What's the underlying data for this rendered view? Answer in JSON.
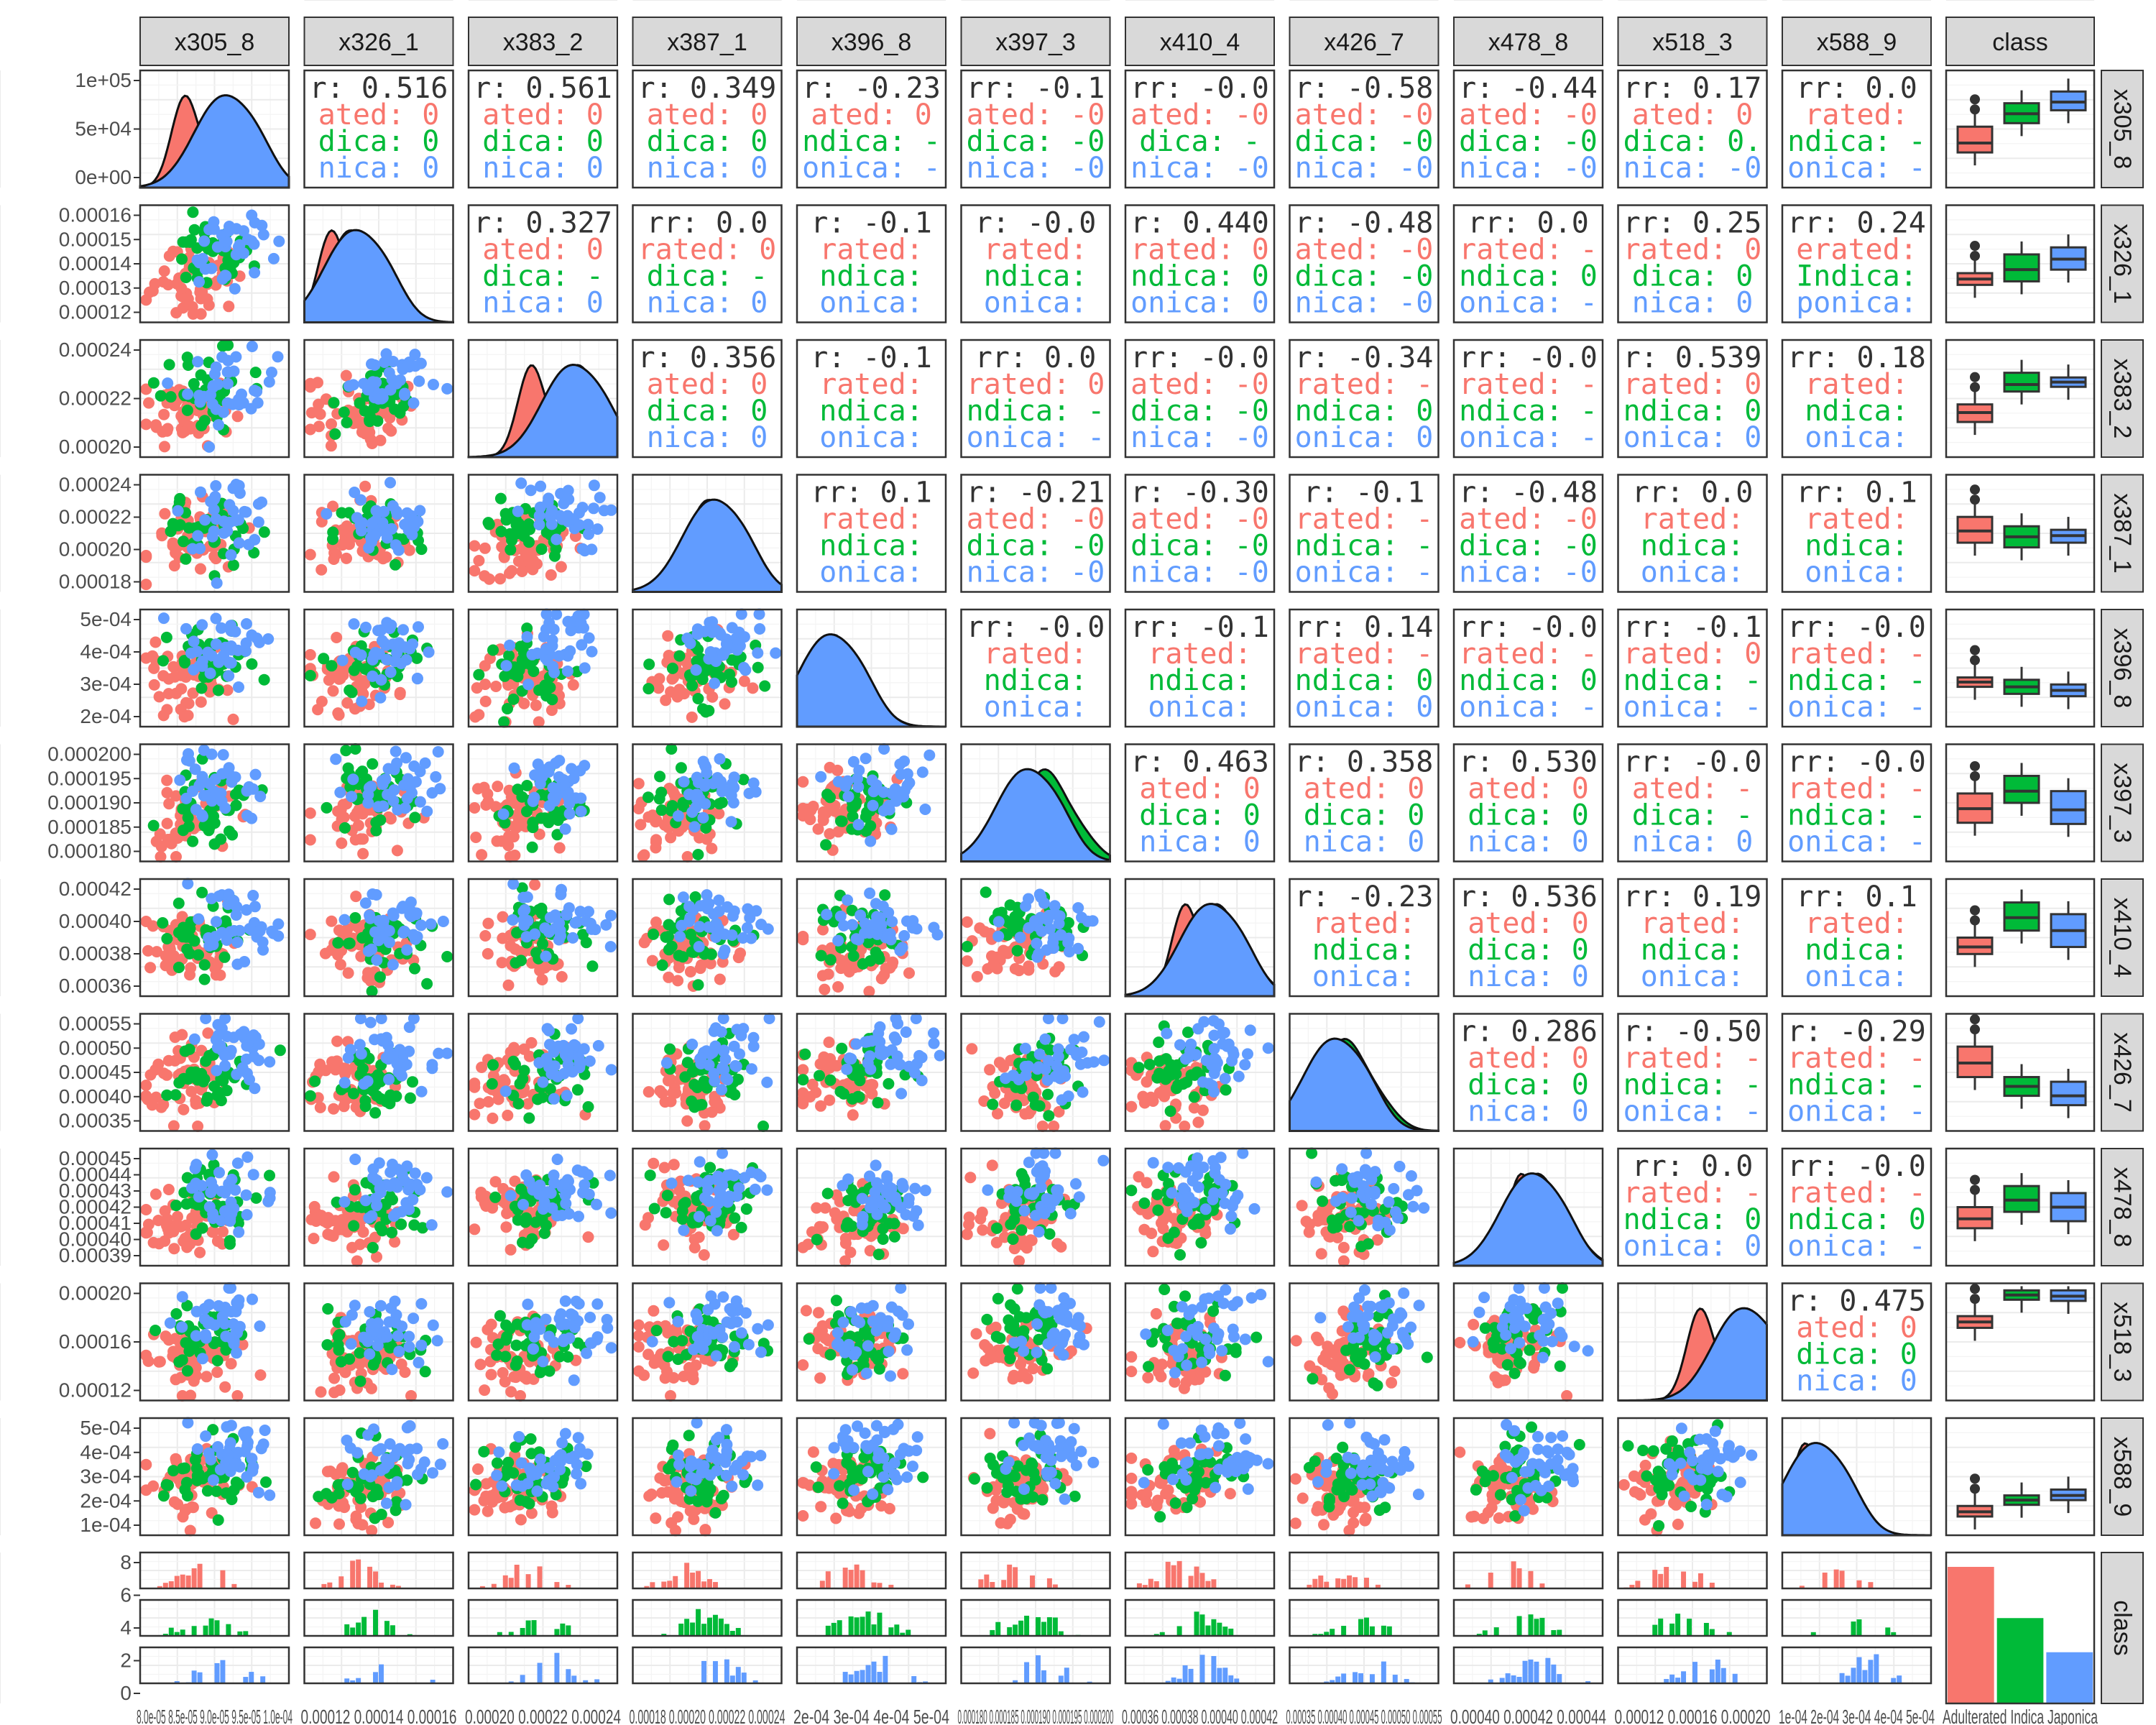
{
  "chart_data": {
    "type": "pairs",
    "variables": [
      "x305_8",
      "x326_1",
      "x383_2",
      "x387_1",
      "x396_8",
      "x397_3",
      "x410_4",
      "x426_7",
      "x478_8",
      "x518_3",
      "x588_9",
      "class"
    ],
    "class_levels": [
      "Adulterated",
      "Indica",
      "Japonica"
    ],
    "class_colors": {
      "Adulterated": "#F8766D",
      "Indica": "#00BA38",
      "Japonica": "#619CFF"
    },
    "y_axis_ticks": {
      "x305_8": [
        "1e+05",
        "5e+04",
        "0e+00"
      ],
      "x326_1": [
        "0.00016",
        "0.00015",
        "0.00014",
        "0.00013",
        "0.00012"
      ],
      "x383_2": [
        "0.00024",
        "0.00022",
        "0.00020"
      ],
      "x387_1": [
        "0.00024",
        "0.00022",
        "0.00020",
        "0.00018"
      ],
      "x396_8": [
        "5e-04",
        "4e-04",
        "3e-04",
        "2e-04"
      ],
      "x397_3": [
        "0.000200",
        "0.000195",
        "0.000190",
        "0.000185",
        "0.000180"
      ],
      "x410_4": [
        "0.00042",
        "0.00040",
        "0.00038",
        "0.00036"
      ],
      "x426_7": [
        "0.00055",
        "0.00050",
        "0.00045",
        "0.00040",
        "0.00035"
      ],
      "x478_8": [
        "0.00045",
        "0.00044",
        "0.00043",
        "0.00042",
        "0.00041",
        "0.00040",
        "0.00039"
      ],
      "x518_3": [
        "0.00020",
        "0.00016",
        "0.00012"
      ],
      "x588_9": [
        "5e-04",
        "4e-04",
        "3e-04",
        "2e-04",
        "1e-04"
      ],
      "class": [
        "8",
        "6",
        "4",
        "2",
        "0"
      ]
    },
    "x_axis_ticks": {
      "x305_8": "8.0e-05 8.5e-05 9.0e-05 9.5e-05 1.0e-04",
      "x326_1": "0.00012 0.00014 0.00016",
      "x383_2": "0.00020 0.00022 0.00024",
      "x387_1": "0.00018 0.00020 0.00022 0.00024",
      "x396_8": "2e-04 3e-04 4e-04 5e-04",
      "x397_3": "0.000180 0.000185 0.000190 0.000195 0.000200",
      "x410_4": "0.00036 0.00038 0.00040 0.00042",
      "x426_7": "0.00035 0.00040 0.00045 0.00050 0.00055",
      "x478_8": "0.00040 0.00042 0.00044",
      "x518_3": "0.00012 0.00016 0.00020",
      "x588_9": "1e-04 2e-04 3e-04 4e-04 5e-04",
      "class": "Adulterated Indica Japonica"
    },
    "correlation_texts": [
      {
        "row": 0,
        "col": 1,
        "lines": [
          "r: 0.516",
          "ated: 0",
          "dica: 0",
          "nica: 0"
        ]
      },
      {
        "row": 0,
        "col": 2,
        "lines": [
          "r: 0.561",
          "ated: 0",
          "dica: 0",
          "nica: 0"
        ]
      },
      {
        "row": 0,
        "col": 3,
        "lines": [
          "r: 0.349",
          "ated: 0",
          "dica: 0",
          "nica: 0"
        ]
      },
      {
        "row": 0,
        "col": 4,
        "lines": [
          "r: -0.23",
          "ated: 0",
          "ndica: -",
          "onica: -"
        ]
      },
      {
        "row": 0,
        "col": 5,
        "lines": [
          "rr: -0.1",
          "ated: -0",
          "dica: -0",
          "nica: -0"
        ]
      },
      {
        "row": 0,
        "col": 6,
        "lines": [
          "rr: -0.0",
          "ated: -0",
          "dica: -",
          "nica: -0"
        ]
      },
      {
        "row": 0,
        "col": 7,
        "lines": [
          "r: -0.58",
          "ated: -0",
          "dica: -0",
          "nica: -0"
        ]
      },
      {
        "row": 0,
        "col": 8,
        "lines": [
          "r: -0.44",
          "ated: -0",
          "dica: -0",
          "nica: -0"
        ]
      },
      {
        "row": 0,
        "col": 9,
        "lines": [
          "rr: 0.17",
          "ated: 0",
          "dica: 0.",
          "nica: -0"
        ]
      },
      {
        "row": 0,
        "col": 10,
        "lines": [
          "rr: 0.0",
          "rated:",
          "ndica: -",
          "onica: -"
        ]
      },
      {
        "row": 1,
        "col": 2,
        "lines": [
          "r: 0.327",
          "ated: 0",
          "dica: -",
          "nica: 0"
        ]
      },
      {
        "row": 1,
        "col": 3,
        "lines": [
          "rr: 0.0",
          "rated: 0",
          "dica: -",
          "nica: 0"
        ]
      },
      {
        "row": 1,
        "col": 4,
        "lines": [
          "r: -0.1",
          "rated:",
          "ndica:",
          "onica:"
        ]
      },
      {
        "row": 1,
        "col": 5,
        "lines": [
          "r: -0.0",
          "rated:",
          "ndica:",
          "onica:"
        ]
      },
      {
        "row": 1,
        "col": 6,
        "lines": [
          "r: 0.440",
          "rated: 0",
          "ndica: 0",
          "onica: 0"
        ]
      },
      {
        "row": 1,
        "col": 7,
        "lines": [
          "r: -0.48",
          "ated: -0",
          "dica: -0",
          "nica: -0"
        ]
      },
      {
        "row": 1,
        "col": 8,
        "lines": [
          "rr: 0.0",
          "rated: -",
          "ndica: 0",
          "onica: -"
        ]
      },
      {
        "row": 1,
        "col": 9,
        "lines": [
          "rr: 0.25",
          "rated: 0",
          "dica: 0",
          "nica: 0"
        ]
      },
      {
        "row": 1,
        "col": 10,
        "lines": [
          "rr: 0.24",
          "erated:",
          "Indica:",
          "ponica:"
        ]
      },
      {
        "row": 2,
        "col": 3,
        "lines": [
          "r: 0.356",
          "ated: 0",
          "dica: 0",
          "nica: 0"
        ]
      },
      {
        "row": 2,
        "col": 4,
        "lines": [
          "r: -0.1",
          "rated:",
          "ndica:",
          "onica:"
        ]
      },
      {
        "row": 2,
        "col": 5,
        "lines": [
          "rr: 0.0",
          "rated: 0",
          "ndica: -",
          "onica: -"
        ]
      },
      {
        "row": 2,
        "col": 6,
        "lines": [
          "rr: -0.0",
          "ated: -0",
          "dica: -0",
          "nica: -0"
        ]
      },
      {
        "row": 2,
        "col": 7,
        "lines": [
          "r: -0.34",
          "rated: -",
          "ndica: 0",
          "onica: 0"
        ]
      },
      {
        "row": 2,
        "col": 8,
        "lines": [
          "rr: -0.0",
          "rated: -",
          "ndica: -",
          "onica: -"
        ]
      },
      {
        "row": 2,
        "col": 9,
        "lines": [
          "r: 0.539",
          "rated: 0",
          "ndica: 0",
          "onica: 0"
        ]
      },
      {
        "row": 2,
        "col": 10,
        "lines": [
          "rr: 0.18",
          "rated:",
          "ndica:",
          "onica:"
        ]
      },
      {
        "row": 3,
        "col": 4,
        "lines": [
          "rr: 0.1",
          "rated:",
          "ndica:",
          "onica:"
        ]
      },
      {
        "row": 3,
        "col": 5,
        "lines": [
          "r: -0.21",
          "ated: -0",
          "dica: -0",
          "nica: -0"
        ]
      },
      {
        "row": 3,
        "col": 6,
        "lines": [
          "r: -0.30",
          "ated: -0",
          "dica: -0",
          "nica: -0"
        ]
      },
      {
        "row": 3,
        "col": 7,
        "lines": [
          "r: -0.1",
          "rated: -",
          "ndica: -",
          "onica: -"
        ]
      },
      {
        "row": 3,
        "col": 8,
        "lines": [
          "r: -0.48",
          "ated: -0",
          "dica: -0",
          "nica: -0"
        ]
      },
      {
        "row": 3,
        "col": 9,
        "lines": [
          "rr: 0.0",
          "rated:",
          "ndica:",
          "onica:"
        ]
      },
      {
        "row": 3,
        "col": 10,
        "lines": [
          "rr: 0.1",
          "rated:",
          "ndica:",
          "onica:"
        ]
      },
      {
        "row": 4,
        "col": 5,
        "lines": [
          "rr: -0.0",
          "rated:",
          "ndica:",
          "onica:"
        ]
      },
      {
        "row": 4,
        "col": 6,
        "lines": [
          "rr: -0.1",
          "rated:",
          "ndica:",
          "onica:"
        ]
      },
      {
        "row": 4,
        "col": 7,
        "lines": [
          "rr: 0.14",
          "rated: -",
          "ndica: 0",
          "onica: 0"
        ]
      },
      {
        "row": 4,
        "col": 8,
        "lines": [
          "rr: -0.0",
          "rated: -",
          "ndica: 0",
          "onica: -"
        ]
      },
      {
        "row": 4,
        "col": 9,
        "lines": [
          "rr: -0.1",
          "rated: 0",
          "ndica: -",
          "onica: -"
        ]
      },
      {
        "row": 4,
        "col": 10,
        "lines": [
          "rr: -0.0",
          "rated: -",
          "ndica: -",
          "onica: -"
        ]
      },
      {
        "row": 5,
        "col": 6,
        "lines": [
          "r: 0.463",
          "ated: 0",
          "dica: 0",
          "nica: 0"
        ]
      },
      {
        "row": 5,
        "col": 7,
        "lines": [
          "r: 0.358",
          "ated: 0",
          "dica: 0",
          "nica: 0"
        ]
      },
      {
        "row": 5,
        "col": 8,
        "lines": [
          "r: 0.530",
          "ated: 0",
          "dica: 0",
          "nica: 0"
        ]
      },
      {
        "row": 5,
        "col": 9,
        "lines": [
          "rr: -0.0",
          "ated: -",
          "dica: -",
          "nica: 0"
        ]
      },
      {
        "row": 5,
        "col": 10,
        "lines": [
          "rr: -0.0",
          "rated: -",
          "ndica: -",
          "onica: -"
        ]
      },
      {
        "row": 6,
        "col": 7,
        "lines": [
          "r: -0.23",
          "rated:",
          "ndica:",
          "onica:"
        ]
      },
      {
        "row": 6,
        "col": 8,
        "lines": [
          "r: 0.536",
          "ated: 0",
          "dica: 0",
          "nica: 0"
        ]
      },
      {
        "row": 6,
        "col": 9,
        "lines": [
          "rr: 0.19",
          "rated:",
          "ndica:",
          "onica:"
        ]
      },
      {
        "row": 6,
        "col": 10,
        "lines": [
          "rr: 0.1",
          "rated:",
          "ndica:",
          "onica:"
        ]
      },
      {
        "row": 7,
        "col": 8,
        "lines": [
          "r: 0.286",
          "ated: 0",
          "dica: 0",
          "nica: 0"
        ]
      },
      {
        "row": 7,
        "col": 9,
        "lines": [
          "r: -0.50",
          "rated: -",
          "ndica: -",
          "onica: -"
        ]
      },
      {
        "row": 7,
        "col": 10,
        "lines": [
          "r: -0.29",
          "rated: -",
          "ndica: -",
          "onica: -"
        ]
      },
      {
        "row": 8,
        "col": 9,
        "lines": [
          "rr: 0.0",
          "rated: -",
          "ndica: 0",
          "onica: 0"
        ]
      },
      {
        "row": 8,
        "col": 10,
        "lines": [
          "rr: -0.0",
          "rated: -",
          "ndica: 0",
          "onica: -"
        ]
      },
      {
        "row": 9,
        "col": 10,
        "lines": [
          "r: 0.475",
          "ated: 0",
          "dica: 0",
          "nica: 0"
        ]
      }
    ],
    "class_counts": {
      "Adulterated": 8,
      "Indica": 5,
      "Japonica": 3
    },
    "box_summary_relative": {
      "x305_8": [
        [
          0.3,
          0.52,
          0.38
        ],
        [
          0.55,
          0.72,
          0.63
        ],
        [
          0.66,
          0.82,
          0.73
        ]
      ],
      "x326_1": [
        [
          0.32,
          0.42,
          0.37
        ],
        [
          0.35,
          0.58,
          0.45
        ],
        [
          0.45,
          0.64,
          0.54
        ]
      ],
      "x383_2": [
        [
          0.3,
          0.45,
          0.38
        ],
        [
          0.56,
          0.72,
          0.62
        ],
        [
          0.6,
          0.68,
          0.64
        ]
      ],
      "x387_1": [
        [
          0.42,
          0.64,
          0.52
        ],
        [
          0.38,
          0.56,
          0.47
        ],
        [
          0.42,
          0.53,
          0.48
        ]
      ],
      "x396_8": [
        [
          0.34,
          0.42,
          0.38
        ],
        [
          0.28,
          0.4,
          0.34
        ],
        [
          0.26,
          0.36,
          0.31
        ]
      ],
      "x397_3": [
        [
          0.33,
          0.58,
          0.45
        ],
        [
          0.5,
          0.73,
          0.6
        ],
        [
          0.32,
          0.6,
          0.44
        ]
      ],
      "x410_4": [
        [
          0.36,
          0.5,
          0.42
        ],
        [
          0.56,
          0.8,
          0.67
        ],
        [
          0.42,
          0.7,
          0.56
        ]
      ],
      "x426_7": [
        [
          0.46,
          0.72,
          0.58
        ],
        [
          0.3,
          0.46,
          0.38
        ],
        [
          0.22,
          0.42,
          0.3
        ]
      ],
      "x478_8": [
        [
          0.32,
          0.5,
          0.4
        ],
        [
          0.46,
          0.68,
          0.56
        ],
        [
          0.38,
          0.62,
          0.5
        ]
      ],
      "x518_3": [
        [
          0.62,
          0.72,
          0.67
        ],
        [
          0.86,
          0.94,
          0.9
        ],
        [
          0.85,
          0.94,
          0.89
        ]
      ],
      "x588_9": [
        [
          0.16,
          0.25,
          0.2
        ],
        [
          0.26,
          0.34,
          0.3
        ],
        [
          0.3,
          0.39,
          0.34
        ]
      ]
    },
    "diag_density_peaks": {
      "x305_8": [
        0.3,
        0.55,
        0.55
      ],
      "x326_1": [
        0.18,
        0.3,
        0.32
      ],
      "x383_2": [
        0.42,
        0.72,
        0.68
      ],
      "x387_1": [
        0.55,
        0.5,
        0.52
      ],
      "x396_8": [
        0.25,
        0.22,
        0.2
      ],
      "x397_3": [
        0.45,
        0.55,
        0.42
      ],
      "x410_4": [
        0.4,
        0.6,
        0.55
      ],
      "x426_7": [
        0.3,
        0.36,
        0.28
      ],
      "x478_8": [
        0.45,
        0.55,
        0.5
      ],
      "x518_3": [
        0.55,
        0.85,
        0.82
      ],
      "x588_9": [
        0.15,
        0.22,
        0.2
      ]
    }
  }
}
